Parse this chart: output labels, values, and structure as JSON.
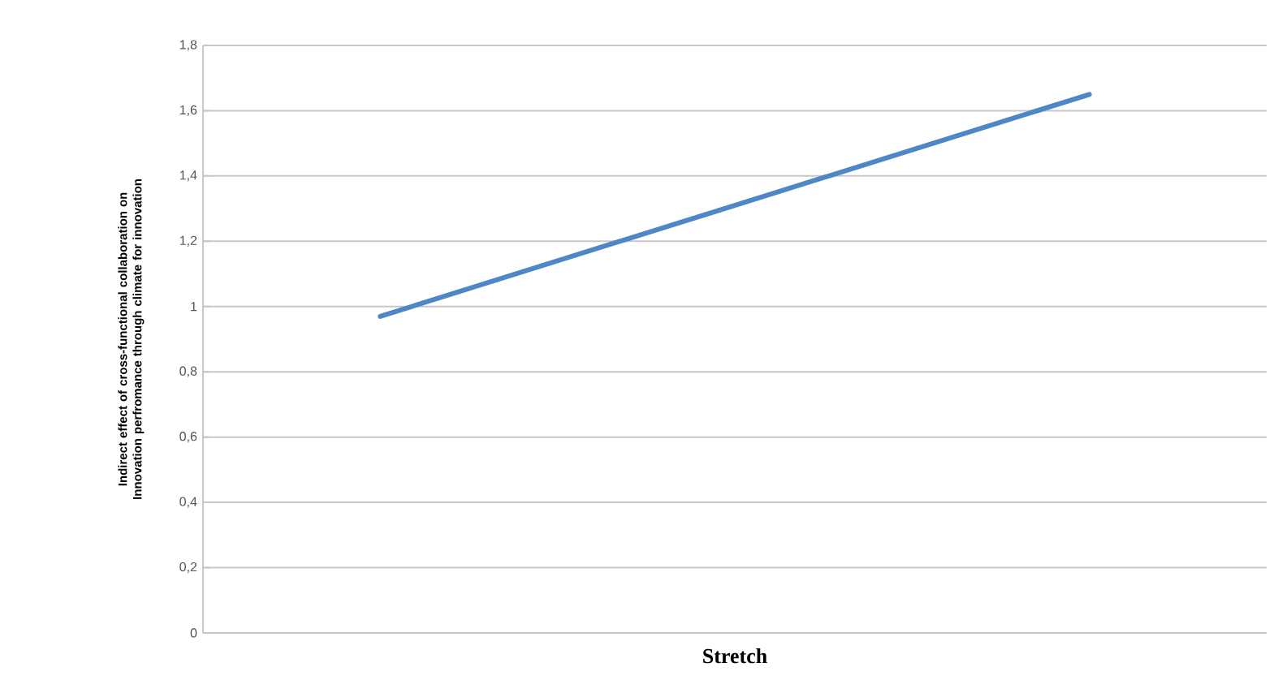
{
  "chart_data": {
    "type": "line",
    "xlabel": "Stretch",
    "ylabel": "Indirect effect of cross-functional collaboration on Innovation perfromance through climate for innovation",
    "categories": [
      null,
      null,
      null
    ],
    "series": [
      {
        "color": "#4f86c6",
        "values": [
          0.97,
          1.31,
          1.65
        ]
      }
    ],
    "ylim": [
      0,
      1.8
    ],
    "yticks": [
      0,
      {
        "value": 0.2,
        "label": "0,2"
      },
      {
        "value": 0.4,
        "label": "0,4"
      },
      {
        "value": 0.6,
        "label": "0,6"
      },
      {
        "value": 0.8,
        "label": "0,8"
      },
      1,
      {
        "value": 1.2,
        "label": "1,2"
      },
      {
        "value": 1.4,
        "label": "1,4"
      },
      {
        "value": 1.6,
        "label": "1,6"
      },
      {
        "value": 1.8,
        "label": "1,8"
      }
    ],
    "grid": "y",
    "tick_labels": "y",
    "marker": "none",
    "line_style": "solid",
    "legend": false
  }
}
